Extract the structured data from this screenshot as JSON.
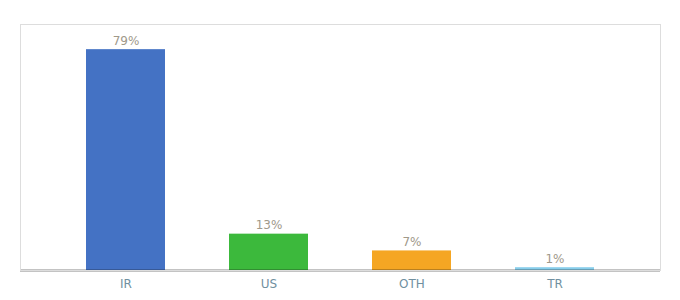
{
  "chart_data": {
    "type": "bar",
    "categories": [
      "IR",
      "US",
      "OTH",
      "TR"
    ],
    "values": [
      79,
      13,
      7,
      1
    ],
    "value_labels": [
      "79%",
      "13%",
      "7%",
      "1%"
    ],
    "colors": [
      "#4472c4",
      "#3cb93c",
      "#f5a623",
      "#87ceeb"
    ],
    "ylim": [
      0,
      88
    ],
    "data_labels": true,
    "tick_labels": "x",
    "grid": false
  }
}
